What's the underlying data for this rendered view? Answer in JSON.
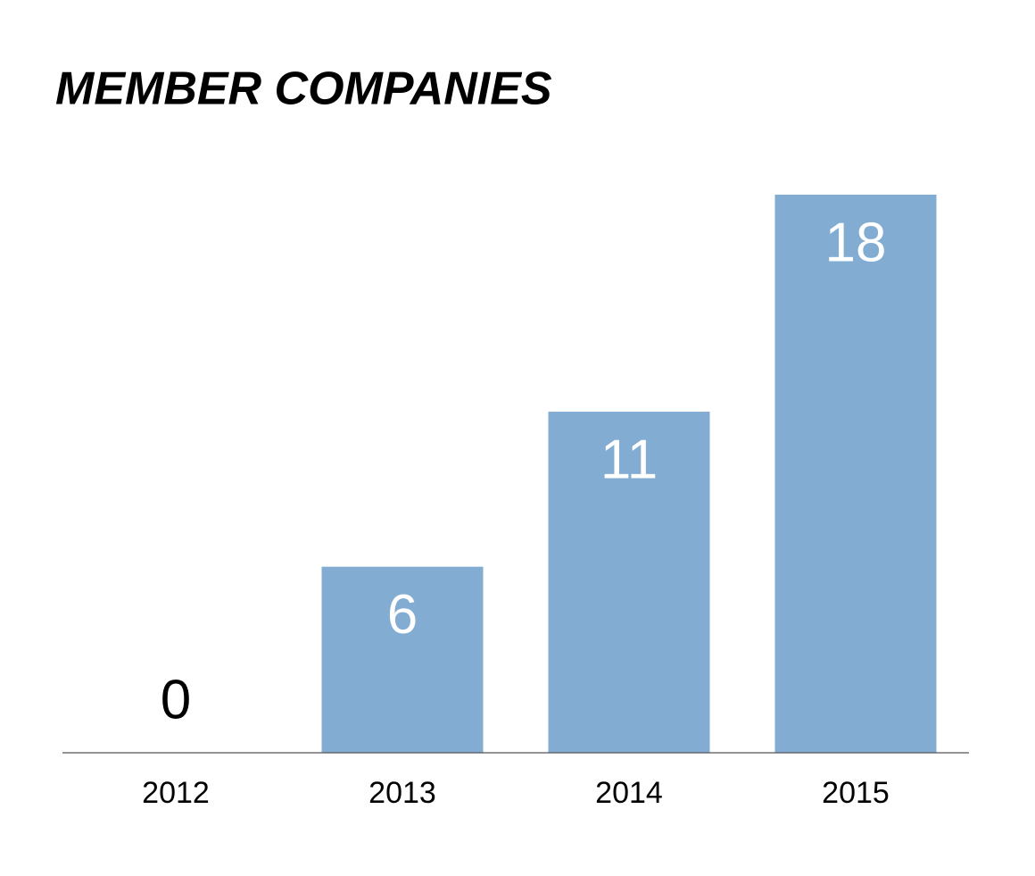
{
  "chart_data": {
    "type": "bar",
    "title": "MEMBER COMPANIES",
    "categories": [
      "2012",
      "2013",
      "2014",
      "2015"
    ],
    "values": [
      0,
      6,
      11,
      18
    ],
    "color": "#82acd2"
  }
}
